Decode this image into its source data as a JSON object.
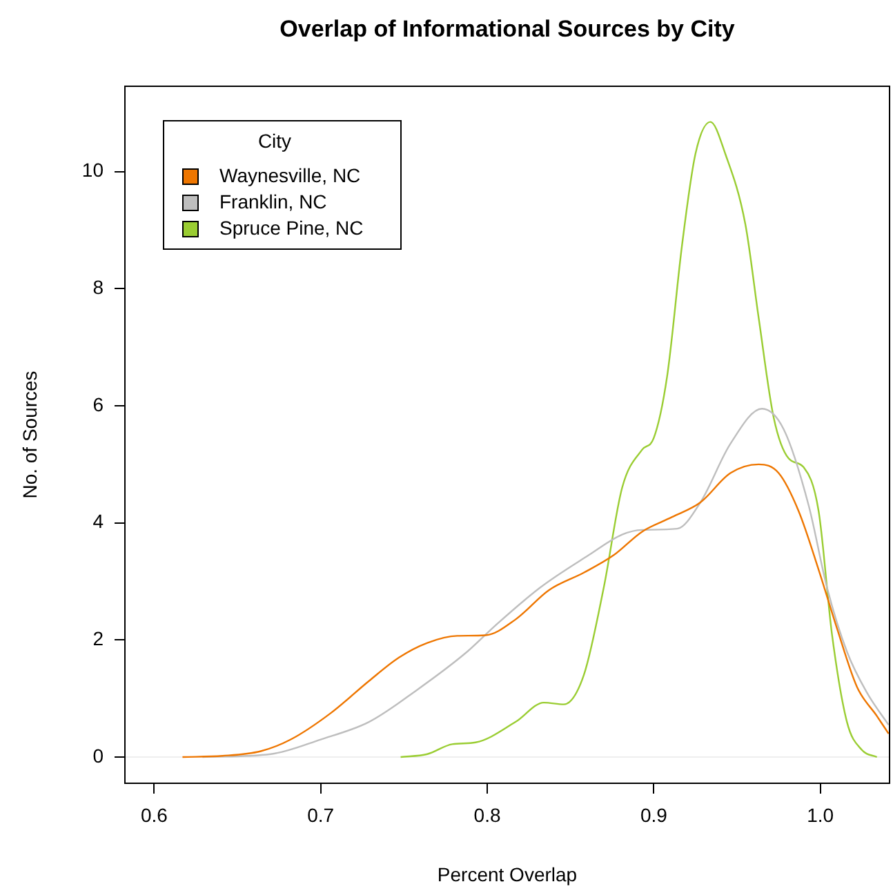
{
  "chart_data": {
    "type": "line",
    "title": "Overlap of Informational Sources by City",
    "xlabel": "Percent Overlap",
    "ylabel": "No. of Sources",
    "legend_title": "City",
    "legend": "top left",
    "marker": "none",
    "line_style": "solid",
    "xlim": [
      0.582,
      1.042
    ],
    "ylim": [
      -0.46,
      11.47
    ],
    "xticks": [
      0.6,
      0.7,
      0.8,
      0.9,
      {
        "value": 1,
        "label": "1.0"
      }
    ],
    "yticks": [
      0,
      2,
      4,
      6,
      8,
      10
    ],
    "ref_lines": [
      {
        "axis": "y",
        "value": 0,
        "color": "#eeeeee"
      }
    ],
    "series": [
      {
        "name": "Waynesville, NC",
        "color": "#ee7600",
        "x": [
          0.617,
          0.641,
          0.664,
          0.682,
          0.706,
          0.729,
          0.747,
          0.764,
          0.782,
          0.799,
          0.817,
          0.837,
          0.858,
          0.876,
          0.893,
          0.911,
          0.928,
          0.946,
          0.963,
          0.975,
          0.987,
          0.999,
          1.01,
          1.022,
          1.034,
          1.041
        ],
        "values": [
          0,
          0.02,
          0.1,
          0.3,
          0.75,
          1.3,
          1.7,
          1.95,
          2.07,
          2.08,
          2.35,
          2.85,
          3.15,
          3.45,
          3.85,
          4.1,
          4.35,
          4.85,
          5,
          4.85,
          4.2,
          3.2,
          2.2,
          1.2,
          0.7,
          0.4
        ]
      },
      {
        "name": "Franklin, NC",
        "color": "#bebebe",
        "x": [
          0.629,
          0.67,
          0.7,
          0.729,
          0.758,
          0.788,
          0.805,
          0.832,
          0.861,
          0.881,
          0.893,
          0.914,
          0.928,
          0.946,
          0.965,
          0.978,
          0.993,
          1.004,
          1.016,
          1.028,
          1.041
        ],
        "values": [
          0,
          0.05,
          0.3,
          0.6,
          1.15,
          1.8,
          2.25,
          2.9,
          3.45,
          3.8,
          3.88,
          3.9,
          4.35,
          5.35,
          5.95,
          5.6,
          4.3,
          2.9,
          1.8,
          1.1,
          0.55
        ]
      },
      {
        "name": "Spruce Pine, NC",
        "color": "#9acd32",
        "x": [
          0.748,
          0.764,
          0.779,
          0.793,
          0.817,
          0.834,
          0.846,
          0.858,
          0.87,
          0.881,
          0.893,
          0.9,
          0.908,
          0.917,
          0.925,
          0.934,
          0.943,
          0.955,
          0.963,
          0.972,
          0.981,
          0.99,
          0.999,
          1.007,
          1.016,
          1.025,
          1.034
        ],
        "values": [
          0,
          0.05,
          0.22,
          0.25,
          0.6,
          0.93,
          0.9,
          1.4,
          2.9,
          4.6,
          5.25,
          5.45,
          6.5,
          8.75,
          10.3,
          10.85,
          10.3,
          9.1,
          7.5,
          5.8,
          5.1,
          4.95,
          4.2,
          2.1,
          0.6,
          0.12,
          0
        ]
      }
    ]
  }
}
